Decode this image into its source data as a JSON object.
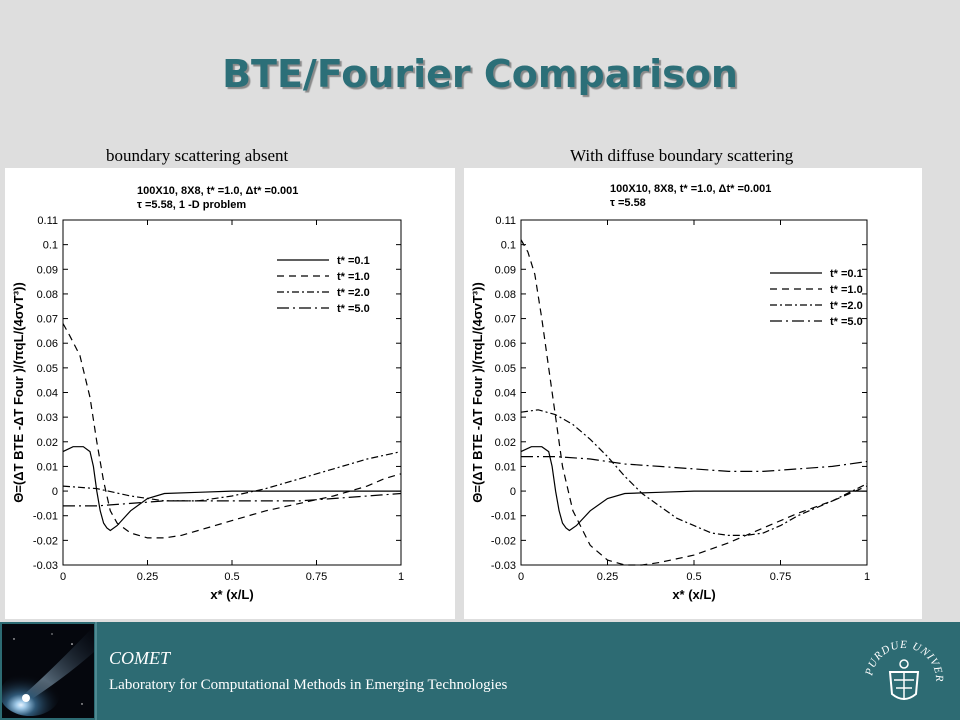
{
  "slide": {
    "title": "BTE/Fourier Comparison"
  },
  "footer": {
    "org": "COMET",
    "lab": "Laboratory for Computational Methods in Emerging Technologies"
  },
  "logo": {
    "icon": "purdue-seal-icon",
    "text": "PURDUE UNIVERSITY"
  },
  "colors": {
    "title": "#2c6f78",
    "footer": "#2d6b73",
    "background": "#dedede",
    "line": "#000000"
  },
  "chart_data": [
    {
      "caption": "boundary scattering absent",
      "type": "line",
      "annotation_lines": [
        "100X10, 8X8, t* =1.0, Δt* =0.001",
        "τ =5.58, 1 -D problem"
      ],
      "xlabel": "x* (x/L)",
      "ylabel": "Θ=(ΔT BTE -ΔT Four )/(πqL/(4σvT³))",
      "xlim": [
        0,
        1
      ],
      "ylim": [
        -0.03,
        0.11
      ],
      "x_ticks": [
        "0",
        "0.25",
        "0.5",
        "0.75",
        "1"
      ],
      "y_ticks": [
        "0.11",
        "0.1",
        "0.09",
        "0.08",
        "0.07",
        "0.06",
        "0.05",
        "0.04",
        "0.03",
        "0.02",
        "0.01",
        "0",
        "-0.01",
        "-0.02",
        "-0.03"
      ],
      "legend_position": "top-right",
      "series": [
        {
          "name": "t* =0.1",
          "dash": "solid",
          "x": [
            0,
            0.03,
            0.06,
            0.08,
            0.09,
            0.1,
            0.11,
            0.12,
            0.13,
            0.14,
            0.16,
            0.2,
            0.25,
            0.3,
            0.4,
            0.5,
            0.6,
            0.8,
            1.0
          ],
          "y": [
            0.016,
            0.018,
            0.018,
            0.016,
            0.01,
            0.0,
            -0.008,
            -0.013,
            -0.015,
            -0.016,
            -0.014,
            -0.008,
            -0.003,
            -0.001,
            -0.0005,
            0,
            0,
            0,
            0
          ]
        },
        {
          "name": "t* =1.0",
          "dash": "dash",
          "x": [
            0,
            0.02,
            0.05,
            0.08,
            0.1,
            0.12,
            0.14,
            0.16,
            0.2,
            0.25,
            0.3,
            0.35,
            0.4,
            0.5,
            0.6,
            0.7,
            0.8,
            0.9,
            0.95,
            1.0
          ],
          "y": [
            0.068,
            0.063,
            0.055,
            0.038,
            0.02,
            0.004,
            -0.008,
            -0.013,
            -0.017,
            -0.019,
            -0.019,
            -0.018,
            -0.016,
            -0.012,
            -0.008,
            -0.005,
            -0.002,
            0.002,
            0.005,
            0.007
          ]
        },
        {
          "name": "t* =2.0",
          "dash": "dashdot",
          "x": [
            0,
            0.1,
            0.2,
            0.3,
            0.4,
            0.5,
            0.6,
            0.7,
            0.8,
            0.9,
            1.0
          ],
          "y": [
            0.002,
            0.001,
            -0.002,
            -0.004,
            -0.004,
            -0.002,
            0.001,
            0.005,
            0.009,
            0.013,
            0.016
          ]
        },
        {
          "name": "t* =5.0",
          "dash": "longdashdot",
          "x": [
            0,
            0.1,
            0.2,
            0.3,
            0.4,
            0.5,
            0.6,
            0.7,
            0.8,
            0.9,
            1.0
          ],
          "y": [
            -0.006,
            -0.006,
            -0.005,
            -0.004,
            -0.004,
            -0.004,
            -0.004,
            -0.004,
            -0.003,
            -0.002,
            -0.001
          ]
        }
      ]
    },
    {
      "caption": "With diffuse boundary scattering",
      "type": "line",
      "annotation_lines": [
        "100X10, 8X8, t* =1.0, Δt* =0.001",
        "τ =5.58"
      ],
      "xlabel": "x* (x/L)",
      "ylabel": "Θ=(ΔT BTE -ΔT Four )/(πqL/(4σvT³))",
      "xlim": [
        0,
        1
      ],
      "ylim": [
        -0.03,
        0.11
      ],
      "x_ticks": [
        "0",
        "0.25",
        "0.5",
        "0.75",
        "1"
      ],
      "y_ticks": [
        "0.11",
        "0.1",
        "0.09",
        "0.08",
        "0.07",
        "0.06",
        "0.05",
        "0.04",
        "0.03",
        "0.02",
        "0.01",
        "0",
        "-0.01",
        "-0.02",
        "-0.03"
      ],
      "legend_position": "top-right",
      "series": [
        {
          "name": "t* =0.1",
          "dash": "solid",
          "x": [
            0,
            0.03,
            0.06,
            0.08,
            0.09,
            0.1,
            0.11,
            0.12,
            0.13,
            0.14,
            0.16,
            0.2,
            0.25,
            0.3,
            0.4,
            0.5,
            0.6,
            0.8,
            1.0
          ],
          "y": [
            0.016,
            0.018,
            0.018,
            0.016,
            0.01,
            0.0,
            -0.008,
            -0.013,
            -0.015,
            -0.016,
            -0.014,
            -0.008,
            -0.003,
            -0.001,
            -0.0005,
            0,
            0,
            0,
            0
          ]
        },
        {
          "name": "t* =1.0",
          "dash": "dash",
          "x": [
            0,
            0.02,
            0.04,
            0.06,
            0.08,
            0.1,
            0.12,
            0.15,
            0.2,
            0.25,
            0.3,
            0.35,
            0.4,
            0.5,
            0.6,
            0.7,
            0.8,
            0.9,
            1.0
          ],
          "y": [
            0.102,
            0.097,
            0.088,
            0.07,
            0.05,
            0.03,
            0.01,
            -0.008,
            -0.022,
            -0.028,
            -0.03,
            -0.03,
            -0.029,
            -0.026,
            -0.021,
            -0.015,
            -0.009,
            -0.004,
            0.002
          ]
        },
        {
          "name": "t* =2.0",
          "dash": "dashdot",
          "x": [
            0,
            0.05,
            0.1,
            0.15,
            0.2,
            0.25,
            0.3,
            0.35,
            0.4,
            0.45,
            0.5,
            0.55,
            0.6,
            0.65,
            0.7,
            0.75,
            0.8,
            0.9,
            1.0
          ],
          "y": [
            0.032,
            0.033,
            0.031,
            0.027,
            0.021,
            0.014,
            0.006,
            -0.001,
            -0.006,
            -0.011,
            -0.014,
            -0.017,
            -0.018,
            -0.018,
            -0.017,
            -0.014,
            -0.01,
            -0.004,
            0.003
          ]
        },
        {
          "name": "t* =5.0",
          "dash": "longdashdot",
          "x": [
            0,
            0.1,
            0.2,
            0.3,
            0.4,
            0.5,
            0.6,
            0.7,
            0.8,
            0.9,
            1.0
          ],
          "y": [
            0.014,
            0.014,
            0.013,
            0.011,
            0.01,
            0.009,
            0.008,
            0.008,
            0.009,
            0.01,
            0.012
          ]
        }
      ]
    }
  ]
}
